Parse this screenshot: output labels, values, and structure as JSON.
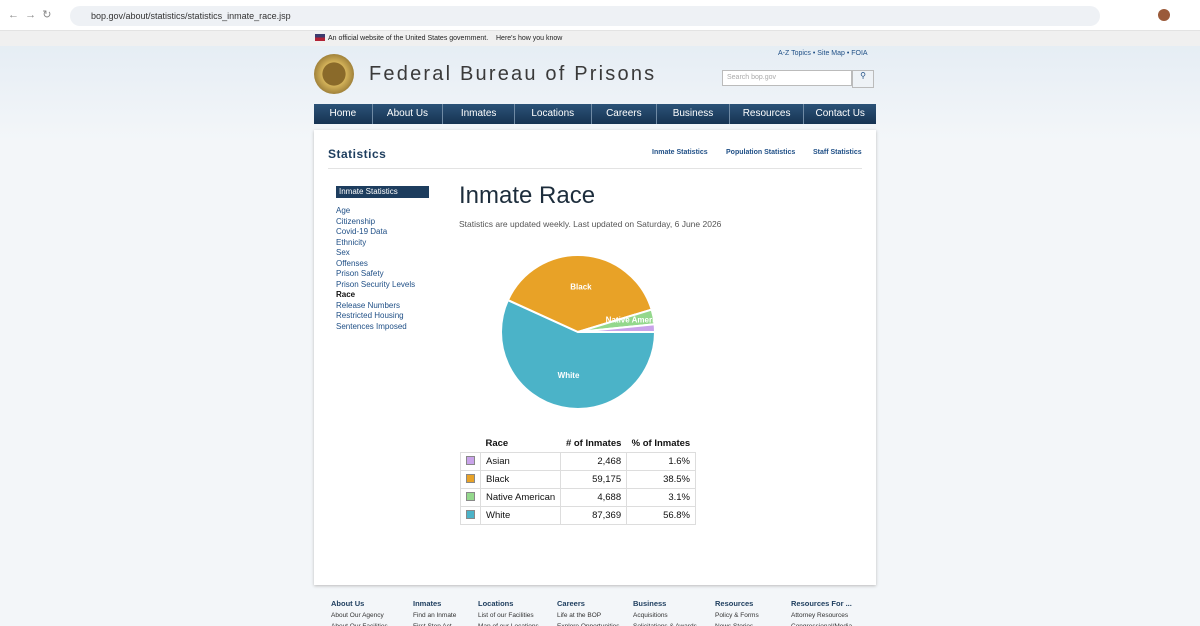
{
  "browser": {
    "url": "bop.gov/about/statistics/statistics_inmate_race.jsp"
  },
  "banner": {
    "text": "An official website of the United States government.",
    "link": "Here's how you know"
  },
  "header": {
    "links": [
      "A-Z Topics",
      "Site Map",
      "FOIA"
    ],
    "title": "Federal Bureau of Prisons",
    "search_placeholder": "Search bop.gov"
  },
  "nav": [
    "Home",
    "About Us",
    "Inmates",
    "Locations",
    "Careers",
    "Business",
    "Resources",
    "Contact Us"
  ],
  "section": {
    "title": "Statistics",
    "tabs": [
      "Inmate Statistics",
      "Population Statistics",
      "Staff Statistics"
    ]
  },
  "sidebar": {
    "heading": "Inmate Statistics",
    "items": [
      "Age",
      "Citizenship",
      "Covid-19 Data",
      "Ethnicity",
      "Sex",
      "Offenses",
      "Prison Safety",
      "Prison Security Levels",
      "Race",
      "Release Numbers",
      "Restricted Housing",
      "Sentences Imposed"
    ]
  },
  "main": {
    "title": "Inmate Race",
    "updated": "Statistics are updated weekly. Last updated on Saturday, 6 June 2026"
  },
  "chart_data": {
    "type": "pie",
    "categories": [
      "White",
      "Black",
      "Native American",
      null
    ],
    "values": [
      56.8,
      38.5,
      3.1,
      1.6
    ],
    "colors": [
      "#4bb3c8",
      "#e8a227",
      "#94d88c",
      "#c9a3ea"
    ]
  },
  "table": {
    "headers": [
      "Race",
      "# of Inmates",
      "% of Inmates"
    ],
    "rows": [
      [
        "Asian",
        "2,468",
        "1.6%"
      ],
      [
        "Black",
        "59,175",
        "38.5%"
      ],
      [
        "Native American",
        "4,688",
        "3.1%"
      ],
      [
        "White",
        "87,369",
        "56.8%"
      ]
    ]
  },
  "footer": {
    "columns": [
      {
        "heading": "About Us",
        "links": [
          "About Our Agency",
          "About Our Facilities"
        ]
      },
      {
        "heading": "Inmates",
        "links": [
          "Find an Inmate",
          "First Step Act"
        ]
      },
      {
        "heading": "Locations",
        "links": [
          "List of our Facilities",
          "Map of our Locations"
        ]
      },
      {
        "heading": "Careers",
        "links": [
          "Life at the BOP",
          "Explore Opportunities"
        ]
      },
      {
        "heading": "Business",
        "links": [
          "Acquisitions",
          "Solicitations & Awards"
        ]
      },
      {
        "heading": "Resources",
        "links": [
          "Policy & Forms",
          "News Stories"
        ]
      },
      {
        "heading": "Resources For ...",
        "links": [
          "Attorney Resources",
          "Congressional/Media"
        ]
      }
    ]
  }
}
